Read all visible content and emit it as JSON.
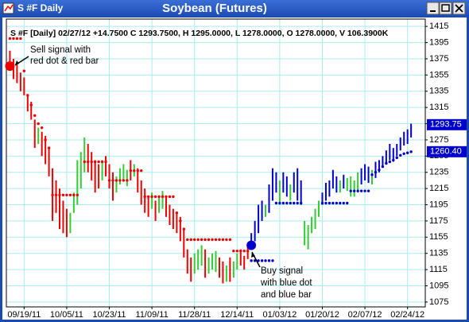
{
  "window_title": "S #F Daily",
  "chart_data": {
    "type": "ohlc",
    "title": "Soybean (Futures)",
    "header": "S #F [Daily] 02/27/12 +14.7500 C 1293.7500, H 1295.0000, L 1278.0000, O 1278.0000, V 106.3900K",
    "xlim": [
      -1,
      117
    ],
    "xticks": [
      {
        "value": 4,
        "label": "09/19/11"
      },
      {
        "value": 16,
        "label": "10/05/11"
      },
      {
        "value": 28,
        "label": "10/23/11"
      },
      {
        "value": 40,
        "label": "11/09/11"
      },
      {
        "value": 52,
        "label": "11/28/11"
      },
      {
        "value": 64,
        "label": "12/14/11"
      },
      {
        "value": 76,
        "label": "01/03/12"
      },
      {
        "value": 88,
        "label": "01/20/12"
      },
      {
        "value": 100,
        "label": "02/07/12"
      },
      {
        "value": 112,
        "label": "02/24/12"
      }
    ],
    "ylim": [
      1069,
      1424
    ],
    "yticks": [
      1075,
      1095,
      1115,
      1135,
      1155,
      1175,
      1195,
      1215,
      1235,
      1255,
      1275,
      1295,
      1315,
      1335,
      1355,
      1375,
      1395,
      1415
    ],
    "grid": true,
    "grid_color": "#a8eef0",
    "high": [
      1385,
      1375,
      1368,
      1358,
      1352,
      1330,
      1322,
      1300,
      1290,
      1285,
      1280,
      1265,
      1240,
      1225,
      1215,
      1200,
      1190,
      1185,
      1210,
      1250,
      1260,
      1278,
      1270,
      1260,
      1250,
      1245,
      1250,
      1255,
      1245,
      1235,
      1230,
      1240,
      1245,
      1238,
      1250,
      1245,
      1240,
      1225,
      1215,
      1205,
      1210,
      1200,
      1205,
      1212,
      1205,
      1195,
      1190,
      1185,
      1180,
      1165,
      1140,
      1130,
      1135,
      1140,
      1145,
      1140,
      1130,
      1135,
      1138,
      1130,
      1125,
      1120,
      1130,
      1125,
      1135,
      1140,
      1132,
      1145,
      1160,
      1175,
      1195,
      1200,
      1195,
      1220,
      1240,
      1235,
      1225,
      1235,
      1230,
      1220,
      1235,
      1240,
      1225,
      1175,
      1170,
      1180,
      1190,
      1200,
      1210,
      1222,
      1225,
      1238,
      1230,
      1225,
      1232,
      1228,
      1230,
      1225,
      1235,
      1240,
      1245,
      1242,
      1238,
      1248,
      1250,
      1255,
      1262,
      1270,
      1265,
      1270,
      1278,
      1285,
      1288,
      1295
    ],
    "low": [
      1362,
      1350,
      1345,
      1335,
      1330,
      1310,
      1300,
      1265,
      1270,
      1255,
      1245,
      1230,
      1175,
      1185,
      1165,
      1160,
      1155,
      1160,
      1185,
      1195,
      1215,
      1235,
      1235,
      1225,
      1210,
      1215,
      1225,
      1230,
      1215,
      1200,
      1210,
      1220,
      1225,
      1218,
      1225,
      1230,
      1210,
      1195,
      1185,
      1180,
      1190,
      1175,
      1185,
      1190,
      1180,
      1170,
      1165,
      1160,
      1150,
      1130,
      1110,
      1100,
      1110,
      1115,
      1120,
      1105,
      1110,
      1115,
      1112,
      1105,
      1098,
      1100,
      1100,
      1105,
      1115,
      1120,
      1115,
      1128,
      1140,
      1150,
      1160,
      1175,
      1180,
      1185,
      1200,
      1210,
      1195,
      1210,
      1205,
      1200,
      1210,
      1200,
      1195,
      1145,
      1140,
      1160,
      1165,
      1180,
      1195,
      1200,
      1205,
      1215,
      1210,
      1210,
      1215,
      1212,
      1205,
      1205,
      1210,
      1220,
      1225,
      1222,
      1220,
      1228,
      1235,
      1242,
      1245,
      1250,
      1248,
      1255,
      1262,
      1268,
      1270,
      1278
    ],
    "colors": [
      "#e00",
      "#e00",
      "#e00",
      "#e00",
      "#e00",
      "#e00",
      "#e00",
      "#e00",
      "#3c3",
      "#e00",
      "#e00",
      "#e00",
      "#e00",
      "#e00",
      "#e00",
      "#e00",
      "#e00",
      "#3c3",
      "#3c3",
      "#3c3",
      "#3c3",
      "#3c3",
      "#e00",
      "#e00",
      "#e00",
      "#e00",
      "#3c3",
      "#e00",
      "#e00",
      "#e00",
      "#3c3",
      "#3c3",
      "#3c3",
      "#3c3",
      "#e00",
      "#3c3",
      "#e00",
      "#e00",
      "#e00",
      "#e00",
      "#3c3",
      "#e00",
      "#3c3",
      "#3c3",
      "#e00",
      "#e00",
      "#e00",
      "#e00",
      "#e00",
      "#e00",
      "#e00",
      "#e00",
      "#3c3",
      "#3c3",
      "#3c3",
      "#e00",
      "#3c3",
      "#3c3",
      "#3c3",
      "#e00",
      "#e00",
      "#3c3",
      "#e00",
      "#3c3",
      "#3c3",
      "#e00",
      "#e00",
      "#e00",
      "#00c",
      "#00c",
      "#00c",
      "#00c",
      "#3c3",
      "#00c",
      "#00c",
      "#00c",
      "#3c3",
      "#00c",
      "#00c",
      "#3c3",
      "#00c",
      "#00c",
      "#00c",
      "#3c3",
      "#3c3",
      "#3c3",
      "#3c3",
      "#3c3",
      "#00c",
      "#00c",
      "#00c",
      "#00c",
      "#00c",
      "#3c3",
      "#00c",
      "#3c3",
      "#3c3",
      "#3c3",
      "#3c3",
      "#00c",
      "#00c",
      "#00c",
      "#3c3",
      "#00c",
      "#00c",
      "#00c",
      "#00c",
      "#00c",
      "#00c",
      "#00c",
      "#00c",
      "#00c",
      "#00c",
      "#00c"
    ],
    "stops": [
      {
        "color": "#e00",
        "values": [
          1400,
          1400,
          1400,
          1400,
          1360,
          1330,
          1318,
          1305,
          1295,
          1290,
          1275,
          1265,
          1207,
          1207,
          1207,
          1207,
          1207,
          1207,
          1207,
          1207,
          null,
          1248,
          1248,
          1248,
          1248,
          1248,
          1248,
          1248,
          1225,
          1225,
          1225,
          1225,
          1225,
          1225,
          1237,
          1237,
          1237,
          1237,
          1205,
          1205,
          1205,
          1205,
          1205,
          1205,
          1205,
          1205,
          1205,
          1185,
          1175,
          1165,
          1152,
          1152,
          1152,
          1152,
          1152,
          1152,
          1152,
          1152,
          1152,
          1152,
          1152,
          1152,
          1152,
          1138,
          1138,
          1138,
          1138,
          1138,
          null,
          null,
          null,
          null,
          null,
          null,
          null,
          null,
          null,
          null,
          null,
          null,
          null,
          null,
          null,
          null,
          null,
          null,
          null,
          null,
          null,
          null,
          null,
          null,
          null,
          null,
          null,
          null,
          null,
          null,
          null,
          null,
          null,
          null,
          null,
          null,
          null,
          null,
          null,
          null,
          null,
          null,
          null,
          null
        ]
      },
      {
        "color": "#00c",
        "values": [
          null,
          null,
          null,
          null,
          null,
          null,
          null,
          null,
          null,
          null,
          null,
          null,
          null,
          null,
          null,
          null,
          null,
          null,
          null,
          null,
          null,
          null,
          null,
          null,
          null,
          null,
          null,
          null,
          null,
          null,
          null,
          null,
          null,
          null,
          null,
          null,
          null,
          null,
          null,
          null,
          null,
          null,
          null,
          null,
          null,
          null,
          null,
          null,
          null,
          null,
          null,
          null,
          null,
          null,
          null,
          null,
          null,
          null,
          null,
          null,
          null,
          null,
          null,
          null,
          null,
          null,
          null,
          null,
          1126,
          1126,
          1126,
          1126,
          1126,
          1126,
          1126,
          1197,
          1197,
          1197,
          1197,
          1197,
          1197,
          1197,
          1197,
          null,
          null,
          null,
          null,
          null,
          1197,
          1197,
          1197,
          1197,
          1197,
          1197,
          1197,
          1197,
          1212,
          1212,
          1212,
          1212,
          1212,
          1212,
          1232,
          1235,
          1238,
          1242,
          1246,
          1248,
          1250,
          1253,
          1256,
          1258,
          1259,
          1260.4
        ]
      }
    ],
    "signals": [
      {
        "x": 0,
        "value": 1366,
        "color": "#e00"
      },
      {
        "x": 68,
        "value": 1145,
        "color": "#00c"
      }
    ],
    "annotations": [
      {
        "lines": [
          "Sell signal with",
          "red dot & red bar"
        ]
      },
      {
        "lines": [
          "Buy signal",
          "with blue dot",
          "and blue bar"
        ]
      }
    ],
    "price_labels": [
      {
        "value": 1293.75,
        "label": "1293.75",
        "color": "#00c"
      },
      {
        "value": 1260.4,
        "label": "1260.40",
        "color": "#00c"
      }
    ]
  }
}
